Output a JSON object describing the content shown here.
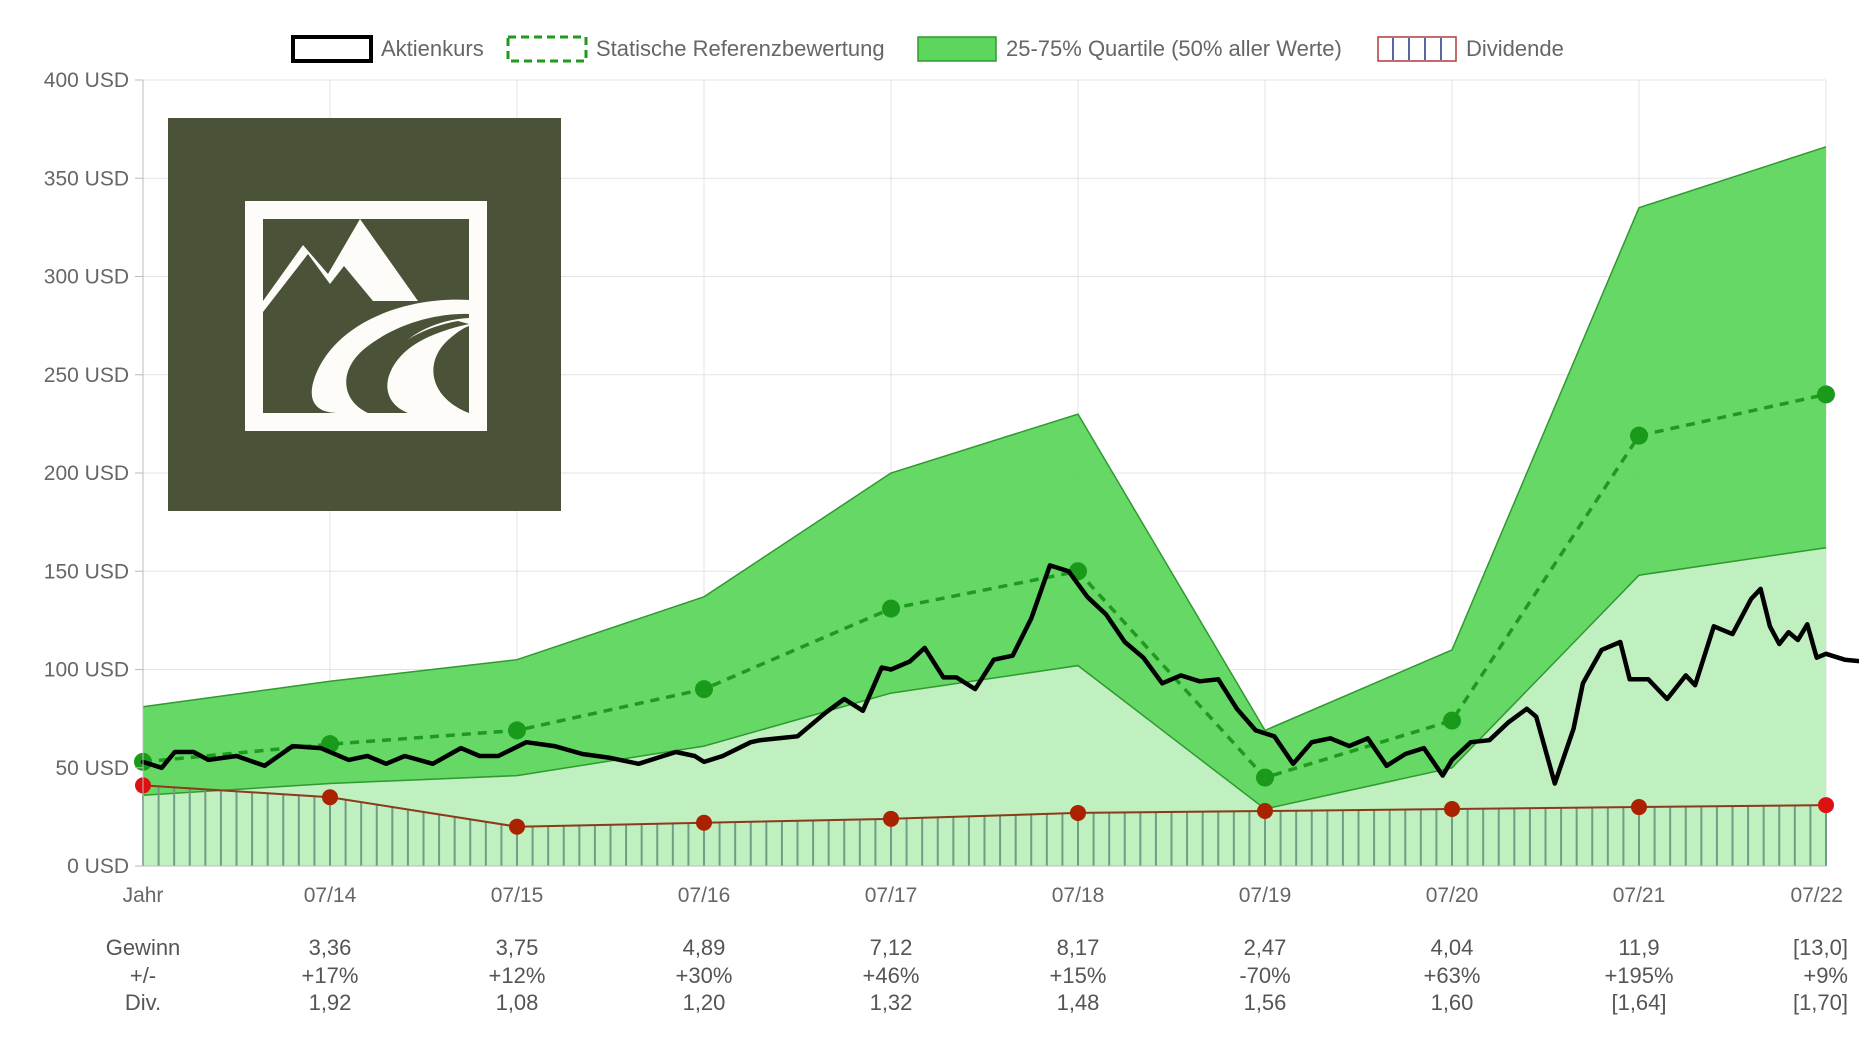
{
  "legend": {
    "items": [
      {
        "label": "Aktienkurs"
      },
      {
        "label": "Statische Referenzbewertung"
      },
      {
        "label": "25-75% Quartile (50% aller Werte)"
      },
      {
        "label": "Dividende"
      }
    ]
  },
  "colors": {
    "price": "#000000",
    "reference": "#1e9a1e",
    "quartile_band": "#5dd65d",
    "lower_band": "#c0efc0",
    "dividend_line": "#8b3a1a",
    "dividend_point": "#aa2200",
    "dividend_bar_stroke": "#6f9e86",
    "reference_point": "#1a9a1a",
    "grid": "#e3e3e3",
    "logo_bg": "#4a5237",
    "logo_fg": "#fdfcf8"
  },
  "icons": {
    "logo": "mountain-road-logo-icon"
  },
  "chart_data": {
    "type": "line",
    "ylim": [
      0,
      400
    ],
    "y_ticks": [
      {
        "label": "0 USD",
        "value": 0
      },
      {
        "label": "50 USD",
        "value": 50
      },
      {
        "label": "100 USD",
        "value": 100
      },
      {
        "label": "150 USD",
        "value": 150
      },
      {
        "label": "200 USD",
        "value": 200
      },
      {
        "label": "250 USD",
        "value": 250
      },
      {
        "label": "300 USD",
        "value": 300
      },
      {
        "label": "350 USD",
        "value": 350
      },
      {
        "label": "400 USD",
        "value": 400
      }
    ],
    "xlim": [
      2013,
      2022
    ],
    "x_ticks": [
      {
        "label": "Jahr",
        "value": 2013
      },
      {
        "label": "07/14",
        "value": 2014
      },
      {
        "label": "07/15",
        "value": 2015
      },
      {
        "label": "07/16",
        "value": 2016
      },
      {
        "label": "07/17",
        "value": 2017
      },
      {
        "label": "07/18",
        "value": 2018
      },
      {
        "label": "07/19",
        "value": 2019
      },
      {
        "label": "07/20",
        "value": 2020
      },
      {
        "label": "07/21",
        "value": 2021
      },
      {
        "label": "07/22",
        "value": 2022
      }
    ],
    "quartile_upper": {
      "x": [
        2013,
        2014,
        2015,
        2016,
        2017,
        2018,
        2019,
        2020,
        2021,
        2022
      ],
      "values": [
        81,
        94,
        105,
        137,
        200,
        230,
        69,
        110,
        335,
        366
      ]
    },
    "quartile_lower": {
      "x": [
        2013,
        2014,
        2015,
        2016,
        2017,
        2018,
        2019,
        2020,
        2021,
        2022
      ],
      "values": [
        36,
        42,
        46,
        61,
        88,
        102,
        29,
        50,
        148,
        162
      ]
    },
    "reference": {
      "x": [
        2013,
        2014,
        2015,
        2016,
        2017,
        2018,
        2019,
        2020,
        2021,
        2022
      ],
      "values": [
        53,
        62,
        69,
        90,
        131,
        150,
        45,
        74,
        219,
        240
      ]
    },
    "dividend": {
      "x": [
        2013,
        2014,
        2015,
        2016,
        2017,
        2018,
        2019,
        2020,
        2021,
        2022
      ],
      "values": [
        41,
        35,
        20,
        22,
        24,
        27,
        28,
        29,
        30,
        31
      ]
    },
    "price": {
      "x": [
        2013.0,
        2013.1,
        2013.17,
        2013.27,
        2013.35,
        2013.5,
        2013.65,
        2013.8,
        2013.95,
        2014.1,
        2014.2,
        2014.3,
        2014.4,
        2014.55,
        2014.7,
        2014.8,
        2014.9,
        2015.05,
        2015.2,
        2015.35,
        2015.5,
        2015.65,
        2015.75,
        2015.85,
        2015.95,
        2016.0,
        2016.1,
        2016.25,
        2016.3,
        2016.4,
        2016.5,
        2016.65,
        2016.75,
        2016.85,
        2016.95,
        2017.0,
        2017.1,
        2017.18,
        2017.28,
        2017.35,
        2017.45,
        2017.55,
        2017.65,
        2017.75,
        2017.85,
        2017.95,
        2018.05,
        2018.15,
        2018.25,
        2018.35,
        2018.45,
        2018.55,
        2018.65,
        2018.75,
        2018.85,
        2018.95,
        2019.05,
        2019.15,
        2019.25,
        2019.35,
        2019.45,
        2019.55,
        2019.65,
        2019.75,
        2019.85,
        2019.95,
        2020.0,
        2020.1,
        2020.2,
        2020.3,
        2020.4,
        2020.45,
        2020.55,
        2020.65,
        2020.7,
        2020.8,
        2020.9,
        2020.95,
        2021.05,
        2021.15,
        2021.25,
        2021.3,
        2021.4,
        2021.5,
        2021.6,
        2021.65,
        2021.7,
        2021.75,
        2021.8,
        2021.85,
        2021.9,
        2021.95,
        2022.0,
        2022.1,
        2022.2,
        2022.3
      ],
      "values": [
        53,
        50,
        58,
        58,
        54,
        56,
        51,
        61,
        60,
        54,
        56,
        52,
        56,
        52,
        60,
        56,
        56,
        63,
        61,
        57,
        55,
        52,
        55,
        58,
        56,
        53,
        56,
        63,
        64,
        65,
        66,
        78,
        85,
        79,
        101,
        100,
        104,
        111,
        96,
        96,
        90,
        105,
        107,
        126,
        153,
        150,
        137,
        128,
        114,
        106,
        93,
        97,
        94,
        95,
        80,
        69,
        66,
        52,
        63,
        65,
        61,
        65,
        51,
        57,
        60,
        46,
        54,
        63,
        64,
        73,
        80,
        76,
        42,
        70,
        93,
        110,
        114,
        95,
        95,
        85,
        97,
        92,
        122,
        118,
        136,
        141,
        122,
        113,
        119,
        115,
        123,
        106,
        108,
        105,
        104,
        107
      ]
    },
    "table": {
      "rows": [
        {
          "label": "Gewinn",
          "values": [
            "3,36",
            "3,75",
            "4,89",
            "7,12",
            "8,17",
            "2,47",
            "4,04",
            "11,9",
            "[13,0]"
          ]
        },
        {
          "label": "+/-",
          "values": [
            "+17%",
            "+12%",
            "+30%",
            "+46%",
            "+15%",
            "-70%",
            "+63%",
            "+195%",
            "+9%"
          ]
        },
        {
          "label": "Div.",
          "values": [
            "1,92",
            "1,08",
            "1,20",
            "1,32",
            "1,48",
            "1,56",
            "1,60",
            "[1,64]",
            "[1,70]"
          ]
        }
      ]
    }
  }
}
